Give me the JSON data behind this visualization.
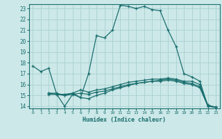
{
  "xlabel": "Humidex (Indice chaleur)",
  "bg_color": "#cce8e8",
  "line_color": "#1a6e6e",
  "grid_color": "#aad0d0",
  "xlim": [
    -0.5,
    23.5
  ],
  "ylim": [
    13.8,
    23.4
  ],
  "yticks": [
    14,
    15,
    16,
    17,
    18,
    19,
    20,
    21,
    22,
    23
  ],
  "xticks": [
    0,
    1,
    2,
    3,
    4,
    5,
    6,
    7,
    8,
    9,
    10,
    11,
    12,
    13,
    14,
    15,
    16,
    17,
    18,
    19,
    20,
    21,
    22,
    23
  ],
  "lines": [
    {
      "x": [
        0,
        1,
        2,
        3,
        4,
        5,
        6,
        7,
        8,
        9,
        10,
        11,
        12,
        13,
        14,
        15,
        16,
        17,
        18,
        19,
        20,
        21,
        22,
        23
      ],
      "y": [
        17.7,
        17.2,
        17.5,
        15.1,
        14.0,
        15.1,
        14.8,
        17.0,
        20.5,
        20.3,
        21.0,
        23.3,
        23.2,
        23.0,
        23.2,
        22.9,
        22.8,
        21.0,
        19.5,
        17.0,
        16.7,
        16.3,
        14.0,
        13.9
      ]
    },
    {
      "x": [
        2,
        3,
        4,
        5,
        6,
        7,
        8,
        9,
        10,
        11,
        12,
        13,
        14,
        15,
        16,
        17,
        18,
        19,
        20,
        21,
        22,
        23
      ],
      "y": [
        15.2,
        15.2,
        15.0,
        15.2,
        15.5,
        15.3,
        15.5,
        15.6,
        15.8,
        16.0,
        16.2,
        16.3,
        16.4,
        16.5,
        16.5,
        16.6,
        16.5,
        16.3,
        16.3,
        16.0,
        14.1,
        13.9
      ]
    },
    {
      "x": [
        2,
        3,
        4,
        5,
        6,
        7,
        8,
        9,
        10,
        11,
        12,
        13,
        14,
        15,
        16,
        17,
        18,
        19,
        20,
        21,
        22,
        23
      ],
      "y": [
        15.2,
        15.1,
        15.1,
        15.2,
        14.8,
        14.7,
        15.0,
        15.2,
        15.5,
        15.7,
        15.9,
        16.1,
        16.2,
        16.3,
        16.4,
        16.5,
        16.4,
        16.2,
        16.1,
        15.8,
        14.1,
        13.9
      ]
    },
    {
      "x": [
        2,
        3,
        4,
        5,
        6,
        7,
        8,
        9,
        10,
        11,
        12,
        13,
        14,
        15,
        16,
        17,
        18,
        19,
        20,
        21,
        22,
        23
      ],
      "y": [
        15.1,
        15.1,
        15.0,
        15.1,
        15.2,
        15.1,
        15.3,
        15.4,
        15.6,
        15.8,
        16.0,
        16.1,
        16.2,
        16.3,
        16.3,
        16.4,
        16.3,
        16.1,
        16.0,
        15.7,
        14.0,
        13.9
      ]
    }
  ]
}
